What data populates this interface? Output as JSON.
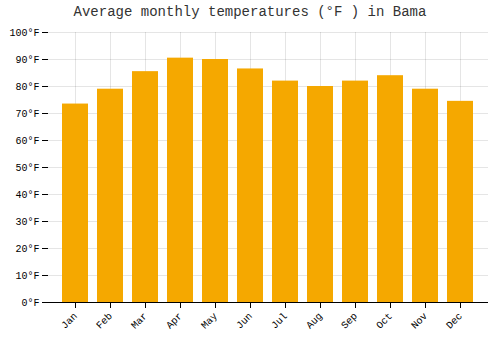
{
  "chart_data": {
    "type": "bar",
    "title": "Average monthly temperatures (°F ) in Bama",
    "categories": [
      "Jan",
      "Feb",
      "Mar",
      "Apr",
      "May",
      "Jun",
      "Jul",
      "Aug",
      "Sep",
      "Oct",
      "Nov",
      "Dec"
    ],
    "values": [
      73.5,
      79,
      85.5,
      90.5,
      90,
      86.5,
      82,
      80,
      82,
      84,
      79,
      74.5
    ],
    "color": "#F5A800",
    "ylim": [
      0,
      100
    ],
    "yticks": [
      {
        "value": 0,
        "label": "0°F"
      },
      {
        "value": 10,
        "label": "10°F"
      },
      {
        "value": 20,
        "label": "20°F"
      },
      {
        "value": 30,
        "label": "30°F"
      },
      {
        "value": 40,
        "label": "40°F"
      },
      {
        "value": 50,
        "label": "50°F"
      },
      {
        "value": 60,
        "label": "60°F"
      },
      {
        "value": 70,
        "label": "70°F"
      },
      {
        "value": 80,
        "label": "80°F"
      },
      {
        "value": 90,
        "label": "90°F"
      },
      {
        "value": 100,
        "label": "100°F"
      }
    ],
    "grid": true
  }
}
